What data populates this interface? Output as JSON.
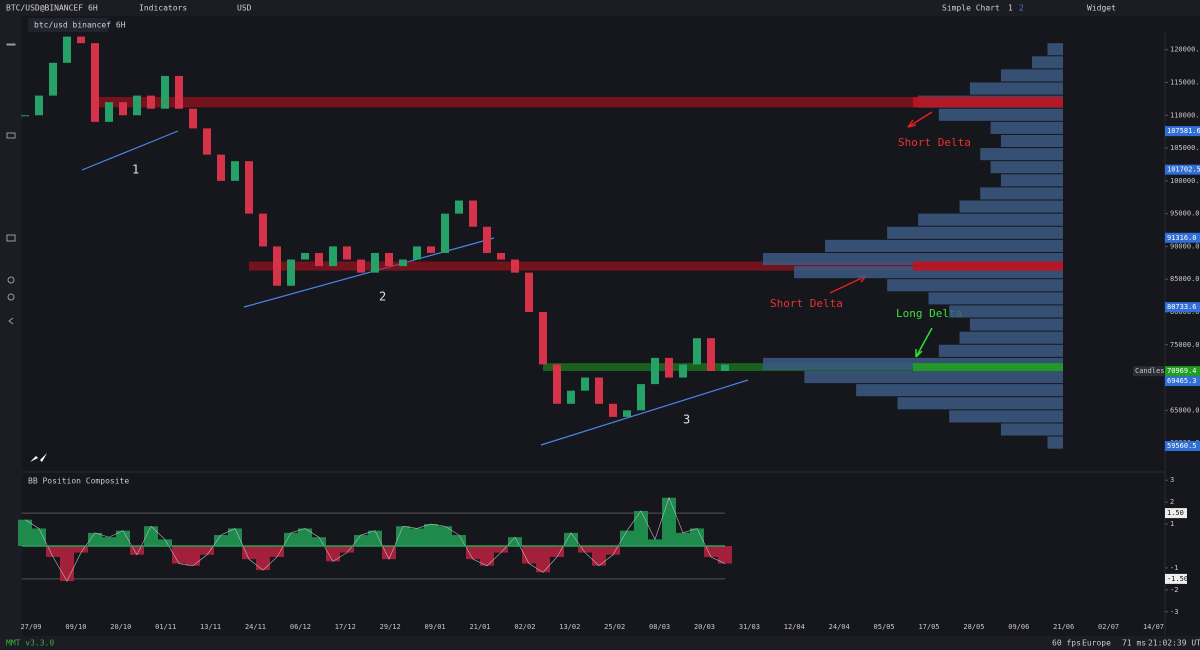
{
  "toolbar": {
    "symbol": "BTC/USD@BINANCEF",
    "interval": "6H",
    "indicators": "Indicators",
    "currency": "USD",
    "layout": "Simple Chart",
    "pages": [
      "1",
      "2"
    ],
    "widget": "Widget"
  },
  "tab": {
    "title": "btc/usd binancef 6H"
  },
  "price_chart": {
    "ylim": [
      55900,
      122700
    ],
    "yticks": [
      {
        "value": 60000,
        "label": "60000.0"
      },
      {
        "value": 65000,
        "label": "65000.0"
      },
      {
        "value": 70000,
        "label": "70000.0"
      },
      {
        "value": 75000,
        "label": "75000.0"
      },
      {
        "value": 80000,
        "label": "80000.0"
      },
      {
        "value": 85000,
        "label": "85000.0"
      },
      {
        "value": 90000,
        "label": "90000.0"
      },
      {
        "value": 95000,
        "label": "95000.0"
      },
      {
        "value": 100000,
        "label": "100000.0"
      },
      {
        "value": 105000,
        "label": "105000.0"
      },
      {
        "value": 110000,
        "label": "110000.0"
      },
      {
        "value": 115000,
        "label": "115000.0"
      },
      {
        "value": 120000,
        "label": "120000.0"
      }
    ],
    "dates": [
      "27/09",
      "09/10",
      "20/10",
      "01/11",
      "13/11",
      "24/11",
      "06/12",
      "17/12",
      "29/12",
      "09/01",
      "21/01",
      "02/02",
      "13/02",
      "25/02",
      "08/03",
      "20/03",
      "31/03",
      "12/04",
      "24/04",
      "05/05",
      "17/05",
      "28/05",
      "09/06",
      "21/06",
      "02/07",
      "14/07"
    ],
    "closes": [
      110000,
      113000,
      118000,
      122000,
      121000,
      109000,
      112000,
      110000,
      113000,
      111000,
      116000,
      111000,
      108000,
      104000,
      100000,
      103000,
      95000,
      90000,
      84000,
      88000,
      89000,
      87000,
      90000,
      88000,
      86000,
      89000,
      87000,
      88000,
      90000,
      89000,
      95000,
      97000,
      93000,
      89000,
      88000,
      86000,
      80000,
      72000,
      66000,
      68000,
      70000,
      66000,
      64000,
      65000,
      69000,
      73000,
      70000,
      72000,
      76000,
      71000,
      72000
    ],
    "up_color": "#26a269",
    "down_color": "#d6334a",
    "zones": [
      {
        "from": 111200,
        "to": 112800,
        "start_index": 5,
        "color": "#c0121f"
      },
      {
        "from": 86300,
        "to": 87700,
        "start_index": 16,
        "color": "#c0121f"
      },
      {
        "from": 71000,
        "to": 72200,
        "start_index": 37,
        "color": "#1f9e1f"
      }
    ],
    "volume_profile": {
      "levels": [
        60000,
        62000,
        64000,
        66000,
        68000,
        70000,
        72000,
        74000,
        76000,
        78000,
        80000,
        82000,
        84000,
        86000,
        88000,
        90000,
        92000,
        94000,
        96000,
        98000,
        100000,
        102000,
        104000,
        106000,
        108000,
        110000,
        112000,
        114000,
        116000,
        118000,
        120000
      ],
      "values": [
        15,
        60,
        110,
        160,
        200,
        250,
        290,
        120,
        100,
        90,
        110,
        130,
        170,
        260,
        290,
        230,
        170,
        140,
        100,
        80,
        60,
        70,
        80,
        60,
        70,
        120,
        140,
        90,
        60,
        30,
        15
      ],
      "color": "#3b5a82"
    },
    "price_labels": [
      {
        "value": 107581.6,
        "label": "107581.6",
        "color": "#2f6fd6"
      },
      {
        "value": 101702.5,
        "label": "101702.5",
        "color": "#2f6fd6"
      },
      {
        "value": 91316.0,
        "label": "91316.0",
        "color": "#2f6fd6"
      },
      {
        "value": 80733.6,
        "label": "80733.6",
        "color": "#2f6fd6"
      },
      {
        "value": 70969.4,
        "label": "70969.4",
        "color": "#1f9e1f"
      },
      {
        "value": 69465.3,
        "label": "69465.3",
        "color": "#2f6fd6"
      },
      {
        "value": 59560.5,
        "label": "59560.5",
        "color": "#2f6fd6"
      }
    ],
    "series_label": "Candles",
    "annotations": [
      "Short Delta",
      "Short Delta",
      "Long Delta"
    ],
    "trend_labels": [
      "1",
      "2",
      "3"
    ]
  },
  "indicator": {
    "title": "BB Position Composite",
    "ylim": [
      -3.1,
      3.1
    ],
    "yticks": [
      3,
      2,
      1,
      -1,
      -2,
      -3
    ],
    "bands": [
      {
        "value": 1.5,
        "label": "1.50"
      },
      {
        "value": -1.5,
        "label": "-1.50"
      }
    ],
    "values": [
      1.2,
      0.8,
      -0.5,
      -1.6,
      -0.3,
      0.6,
      0.4,
      0.7,
      -0.4,
      0.9,
      0.3,
      -0.8,
      -0.9,
      -0.4,
      0.5,
      0.8,
      -0.6,
      -1.1,
      -0.5,
      0.6,
      0.8,
      0.4,
      -0.7,
      -0.3,
      0.5,
      0.7,
      -0.6,
      0.9,
      0.8,
      1.0,
      0.9,
      0.5,
      -0.6,
      -0.9,
      -0.3,
      0.4,
      -0.8,
      -1.2,
      -0.5,
      0.6,
      -0.3,
      -0.9,
      -0.4,
      0.7,
      1.6,
      0.3,
      2.2,
      0.6,
      0.8,
      -0.5,
      -0.8
    ],
    "pos_color": "#1e8a4c",
    "neg_color": "#a3203a"
  },
  "status": {
    "version": "MMT v3.3.0",
    "fps": "60 fps",
    "region": "Europe",
    "latency": "71 ms",
    "clock": "21:02:39 UTC"
  }
}
